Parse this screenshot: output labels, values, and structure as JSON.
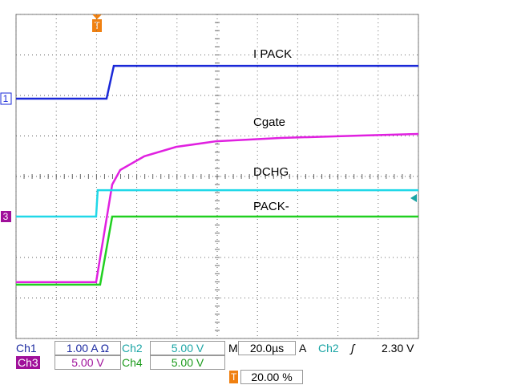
{
  "chart_data": {
    "type": "line",
    "xlim": [
      0,
      10
    ],
    "ylim": [
      0,
      8
    ],
    "xticks": [
      0,
      1,
      2,
      3,
      4,
      5,
      6,
      7,
      8,
      9,
      10
    ],
    "yticks": [
      0,
      1,
      2,
      3,
      4,
      5,
      6,
      7,
      8
    ],
    "grid": true,
    "series": [
      {
        "name": "I PACK",
        "color": "#1a28d8",
        "x": [
          0,
          2.25,
          2.43,
          10
        ],
        "values": [
          5.92,
          5.92,
          6.73,
          6.73
        ]
      },
      {
        "name": "Cgate",
        "color": "#e020e0",
        "x": [
          0,
          1.99,
          2.39,
          2.59,
          3.19,
          3.98,
          4.98,
          6.57,
          8.57,
          10
        ],
        "values": [
          1.39,
          1.39,
          3.8,
          4.16,
          4.5,
          4.73,
          4.87,
          4.95,
          5.01,
          5.05
        ]
      },
      {
        "name": "DCHG",
        "color": "#20d8e8",
        "x": [
          0,
          1.99,
          2.03,
          10
        ],
        "values": [
          3.01,
          3.01,
          3.66,
          3.66
        ]
      },
      {
        "name": "PACK-",
        "color": "#20d020",
        "x": [
          0,
          2.09,
          2.39,
          10
        ],
        "values": [
          1.33,
          1.33,
          3.01,
          3.01
        ]
      }
    ]
  },
  "markers": {
    "ch1": "1",
    "ch3": "3",
    "trigger": "T"
  },
  "readouts": {
    "ch1": {
      "label": "Ch1",
      "value": "1.00 A Ω"
    },
    "ch2": {
      "label": "Ch2",
      "value": "5.00 V"
    },
    "timebase": {
      "label": "M",
      "value": "20.0µs"
    },
    "trigger": {
      "label": "A",
      "source": "Ch2",
      "slope": "ʃ",
      "level": "2.30 V"
    },
    "ch3": {
      "label": "Ch3",
      "value": "5.00 V"
    },
    "ch4": {
      "label": "Ch4",
      "value": "5.00 V"
    },
    "trigger_position": {
      "label": "T",
      "value": "20.00 %"
    }
  }
}
